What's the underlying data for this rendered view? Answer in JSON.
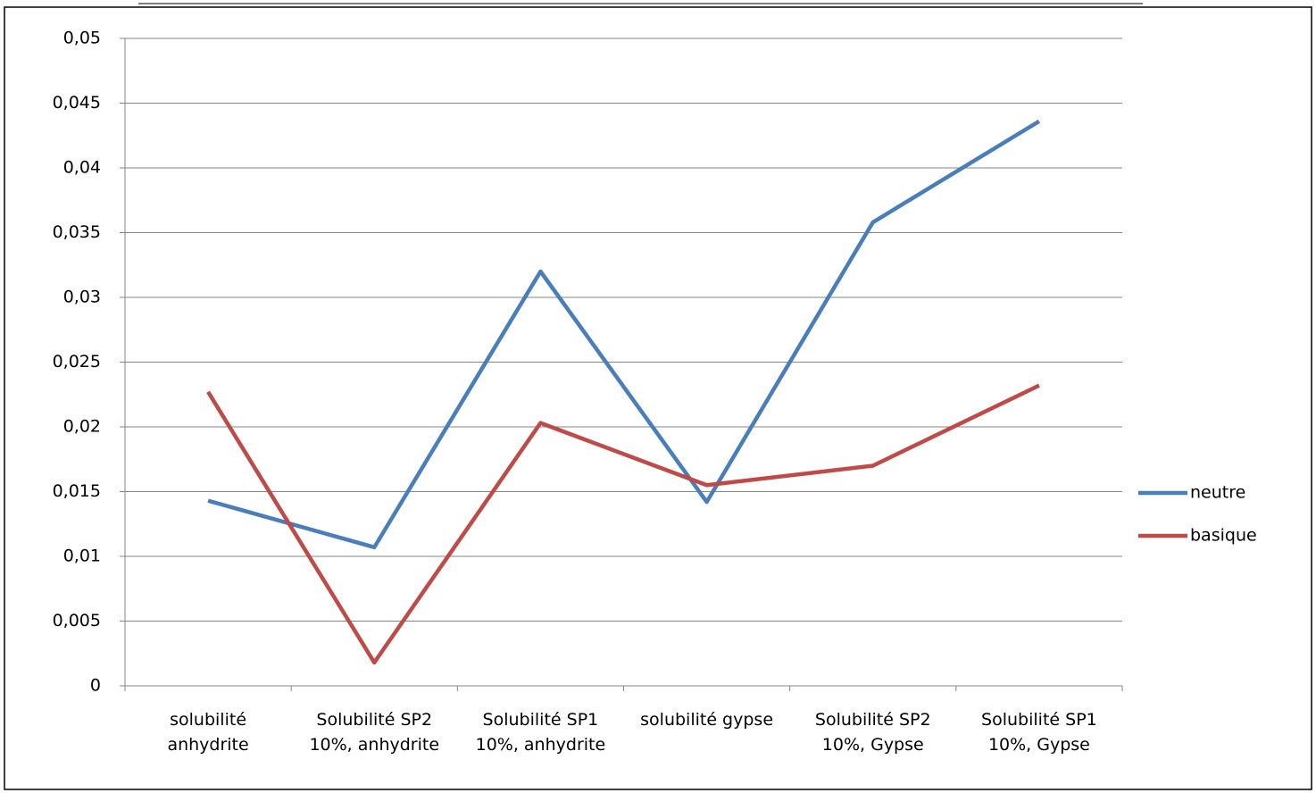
{
  "chart_data": {
    "type": "line",
    "categories": [
      "solubilité anhydrite",
      "Solubilité SP2 10%, anhydrite",
      "Solubilité SP1 10%, anhydrite",
      "solubilité gypse",
      "Solubilité SP2 10%, Gypse",
      "Solubilité SP1 10%, Gypse"
    ],
    "series": [
      {
        "name": "neutre",
        "color": "#4a7ebb",
        "values": [
          0.0143,
          0.0107,
          0.032,
          0.0142,
          0.0358,
          0.0436
        ]
      },
      {
        "name": "basique",
        "color": "#be4b48",
        "values": [
          0.0227,
          0.0018,
          0.0203,
          0.0155,
          0.017,
          0.0232
        ]
      }
    ],
    "ylim": [
      0,
      0.05
    ],
    "yticks": [
      0,
      {
        "value": 0.005,
        "label": "0,005"
      },
      {
        "value": 0.01,
        "label": "0,01"
      },
      {
        "value": 0.015,
        "label": "0,015"
      },
      {
        "value": 0.02,
        "label": "0,02"
      },
      {
        "value": 0.025,
        "label": "0,025"
      },
      {
        "value": 0.03,
        "label": "0,03"
      },
      {
        "value": 0.035,
        "label": "0,035"
      },
      {
        "value": 0.04,
        "label": "0,04"
      },
      {
        "value": 0.045,
        "label": "0,045"
      },
      {
        "value": 0.05,
        "label": "0,05"
      }
    ],
    "grid": true,
    "legend": "right"
  }
}
